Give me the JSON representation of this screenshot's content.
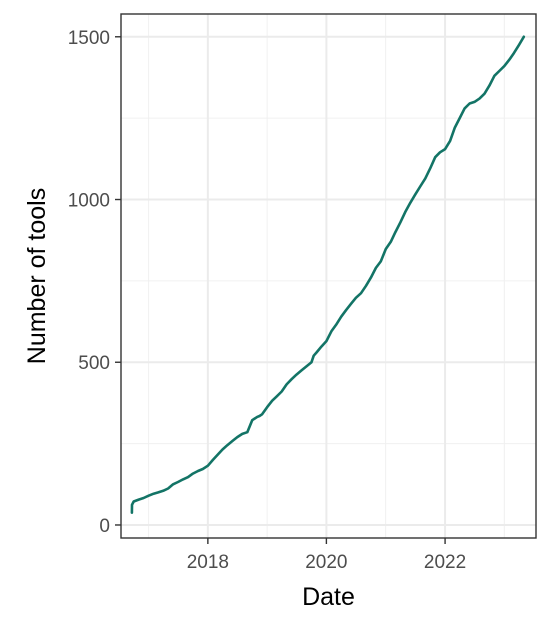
{
  "chart_data": {
    "type": "line",
    "title": "",
    "xlabel": "Date",
    "ylabel": "Number of tools",
    "x_tick_labels": [
      "2018",
      "2020",
      "2022"
    ],
    "x_ticks": [
      "2018-01-01",
      "2020-01-01",
      "2022-01-01"
    ],
    "y_tick_labels": [
      "0",
      "500",
      "1000",
      "1500"
    ],
    "y_ticks": [
      0,
      500,
      1000,
      1500
    ],
    "xlim": [
      "2016-07-15",
      "2023-07-15"
    ],
    "ylim": [
      -40,
      1570
    ],
    "grid": true,
    "line_color": "#137466",
    "series": [
      {
        "x": [
          "2016-09-20",
          "2016-09-21",
          "2016-10-01",
          "2016-11-01",
          "2016-12-01",
          "2017-01-01",
          "2017-02-01",
          "2017-03-01",
          "2017-04-01",
          "2017-05-01",
          "2017-06-01",
          "2017-07-01",
          "2017-08-01",
          "2017-09-01",
          "2017-10-01",
          "2017-11-01",
          "2017-12-01",
          "2018-01-01",
          "2018-02-01",
          "2018-03-01",
          "2018-04-01",
          "2018-05-01",
          "2018-06-01",
          "2018-07-01",
          "2018-08-01",
          "2018-09-01",
          "2018-10-01",
          "2018-11-01",
          "2018-11-15",
          "2018-12-01",
          "2019-01-01",
          "2019-02-01",
          "2019-03-01",
          "2019-04-01",
          "2019-05-01",
          "2019-06-01",
          "2019-07-01",
          "2019-08-01",
          "2019-09-01",
          "2019-10-01",
          "2019-10-15",
          "2019-11-01",
          "2019-12-01",
          "2020-01-01",
          "2020-02-01",
          "2020-03-01",
          "2020-04-01",
          "2020-05-01",
          "2020-06-01",
          "2020-07-01",
          "2020-08-01",
          "2020-09-01",
          "2020-10-01",
          "2020-11-01",
          "2020-12-01",
          "2021-01-01",
          "2021-02-01",
          "2021-03-01",
          "2021-04-01",
          "2021-05-01",
          "2021-06-01",
          "2021-07-01",
          "2021-08-01",
          "2021-09-01",
          "2021-10-01",
          "2021-11-01",
          "2021-12-01",
          "2022-01-01",
          "2022-02-01",
          "2022-03-01",
          "2022-04-01",
          "2022-05-01",
          "2022-06-01",
          "2022-07-01",
          "2022-08-01",
          "2022-09-01",
          "2022-10-01",
          "2022-11-01",
          "2022-12-01",
          "2023-01-01",
          "2023-02-01",
          "2023-03-01",
          "2023-04-01",
          "2023-05-01"
        ],
        "values": [
          38,
          62,
          72,
          78,
          83,
          90,
          96,
          100,
          105,
          112,
          125,
          132,
          140,
          147,
          158,
          166,
          172,
          182,
          200,
          215,
          232,
          245,
          258,
          270,
          280,
          285,
          322,
          332,
          335,
          340,
          362,
          382,
          395,
          410,
          432,
          448,
          462,
          475,
          488,
          500,
          520,
          530,
          548,
          565,
          595,
          615,
          640,
          660,
          680,
          698,
          712,
          735,
          760,
          790,
          810,
          848,
          870,
          900,
          930,
          962,
          990,
          1015,
          1040,
          1065,
          1095,
          1130,
          1145,
          1155,
          1180,
          1220,
          1250,
          1280,
          1295,
          1300,
          1310,
          1325,
          1350,
          1380,
          1395,
          1410,
          1430,
          1450,
          1475,
          1500
        ]
      }
    ]
  }
}
